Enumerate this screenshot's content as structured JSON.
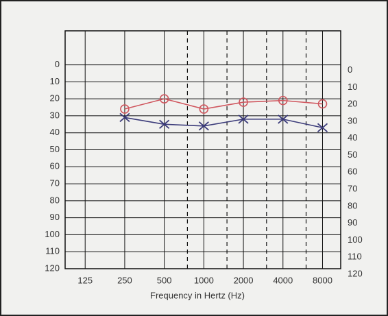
{
  "chart_data": {
    "type": "line",
    "xlabel": "Frequency in Hertz (Hz)",
    "x": [
      250,
      500,
      1000,
      2000,
      4000,
      8000
    ],
    "series": [
      {
        "color": "#d0575f",
        "marker": "o",
        "values": [
          26,
          20,
          26,
          22,
          21,
          23
        ]
      },
      {
        "color": "#3b3b7a",
        "marker": "x",
        "values": [
          31,
          35,
          36,
          32,
          32,
          37
        ]
      }
    ],
    "xscale": "log",
    "xlim": [
      88,
      11000
    ],
    "xticks": [
      125,
      250,
      500,
      1000,
      2000,
      4000,
      8000
    ],
    "x_dashed_grid": [
      750,
      1500,
      3000,
      6000
    ],
    "ylim": [
      -20,
      120
    ],
    "y_inverted": true,
    "yticks": [
      0,
      10,
      20,
      30,
      40,
      50,
      60,
      70,
      80,
      90,
      100,
      110,
      120
    ],
    "grid": true
  }
}
